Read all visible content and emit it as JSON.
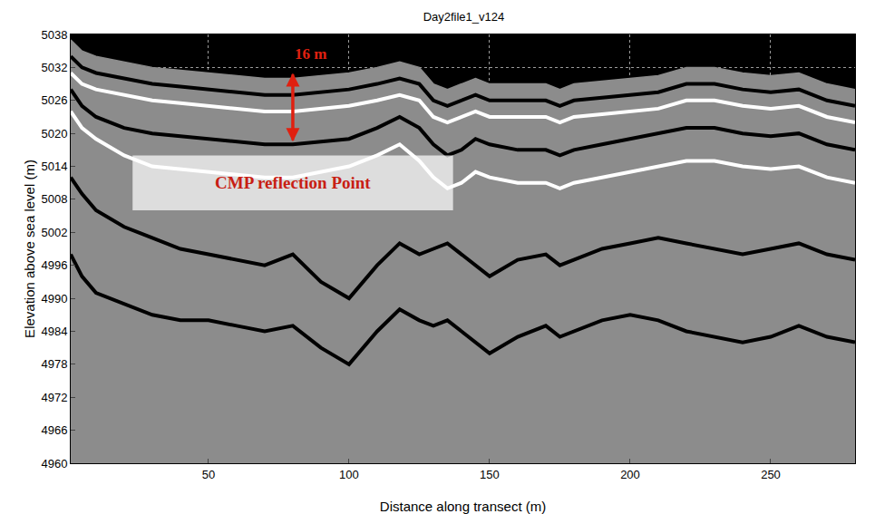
{
  "chart_data": {
    "type": "line",
    "title": "Day2file1_v124",
    "x_label": "Distance along transect (m)",
    "y_label": "Elevation above sea level (m)",
    "x": [
      1,
      5,
      10,
      20,
      30,
      40,
      50,
      60,
      70,
      80,
      90,
      100,
      110,
      118,
      125,
      130,
      135,
      140,
      145,
      150,
      160,
      170,
      175,
      180,
      190,
      200,
      210,
      220,
      230,
      240,
      250,
      260,
      270,
      280
    ],
    "series": [
      {
        "type": "area",
        "color": "#8c8c8c",
        "values": [
          5037,
          5035,
          5034,
          5033,
          5032,
          5031.5,
          5031,
          5030.5,
          5030,
          5030,
          5030.5,
          5031,
          5032,
          5033,
          5032,
          5029,
          5028,
          5029,
          5030,
          5029,
          5029,
          5029,
          5028,
          5029,
          5029.5,
          5030,
          5030.5,
          5032,
          5032,
          5031,
          5030.5,
          5031,
          5029,
          5028
        ]
      },
      {
        "type": "line",
        "color": "#000000",
        "values": [
          5034,
          5032,
          5031,
          5030,
          5029,
          5028.5,
          5028,
          5027.5,
          5027,
          5027,
          5027.5,
          5028,
          5029,
          5030,
          5029,
          5026,
          5025,
          5026,
          5027,
          5026,
          5026,
          5026,
          5025,
          5026,
          5026.5,
          5027,
          5027.5,
          5029,
          5029,
          5028,
          5027.5,
          5028,
          5026,
          5025
        ]
      },
      {
        "type": "line",
        "color": "#ffffff",
        "values": [
          5031,
          5029,
          5028,
          5027,
          5026,
          5025.5,
          5025,
          5024.5,
          5024,
          5024,
          5024.5,
          5025,
          5026,
          5027,
          5026,
          5023,
          5022,
          5023,
          5024,
          5023,
          5023,
          5023,
          5022,
          5023,
          5023.5,
          5024,
          5024.5,
          5026,
          5026,
          5025,
          5024.5,
          5025,
          5023,
          5022
        ]
      },
      {
        "type": "line",
        "color": "#000000",
        "values": [
          5028,
          5025,
          5023,
          5021,
          5020,
          5019.5,
          5019,
          5018.5,
          5018,
          5018,
          5018.5,
          5019,
          5021,
          5023,
          5021,
          5018,
          5016,
          5017,
          5019,
          5018,
          5017,
          5017,
          5016,
          5017,
          5018,
          5019,
          5020,
          5021,
          5021,
          5020,
          5019.5,
          5020,
          5018,
          5017
        ]
      },
      {
        "type": "line",
        "color": "#ffffff",
        "values": [
          5024,
          5021,
          5019,
          5016,
          5014,
          5013.5,
          5013,
          5012.5,
          5012,
          5012,
          5013,
          5014,
          5016,
          5018,
          5015,
          5012,
          5010,
          5011,
          5013,
          5012,
          5011,
          5011,
          5010,
          5011,
          5012,
          5013,
          5014,
          5015,
          5015,
          5014,
          5013.5,
          5014,
          5012,
          5011
        ]
      },
      {
        "type": "line",
        "color": "#000000",
        "values": [
          5012,
          5009,
          5006,
          5003,
          5001,
          4999,
          4998,
          4997,
          4996,
          4998,
          4993,
          4990,
          4996,
          5000,
          4998,
          4999,
          5000,
          4998,
          4996,
          4994,
          4997,
          4998,
          4996,
          4997,
          4999,
          5000,
          5001,
          5000,
          4999,
          4998,
          4999,
          5000,
          4998,
          4997
        ]
      },
      {
        "type": "line",
        "color": "#000000",
        "values": [
          4998,
          4994,
          4991,
          4989,
          4987,
          4986,
          4986,
          4985,
          4984,
          4985,
          4981,
          4978,
          4984,
          4988,
          4986,
          4985,
          4986,
          4984,
          4982,
          4980,
          4983,
          4985,
          4983,
          4984,
          4986,
          4987,
          4986,
          4984,
          4983,
          4982,
          4983,
          4985,
          4983,
          4982
        ]
      }
    ],
    "xlim": [
      1,
      280
    ],
    "xticks": [
      50,
      100,
      150,
      200,
      250
    ],
    "ylim": [
      4960,
      5038
    ],
    "yticks": [
      4960,
      4966,
      4972,
      4978,
      4984,
      4990,
      4996,
      5002,
      5008,
      5014,
      5020,
      5026,
      5032,
      5038
    ],
    "grid": true,
    "annotations": [
      {
        "text": "16 m",
        "x": 80,
        "y": 5034.5,
        "color": "#e02010",
        "arrow": {
          "x": 80,
          "y0": 5031,
          "y1": 5018.5
        }
      },
      {
        "text": "CMP reflection Point",
        "x": 80,
        "y": 5011,
        "color": "#c81e14",
        "box": {
          "x0": 23,
          "x1": 137,
          "y0": 5006,
          "y1": 5016
        }
      }
    ]
  }
}
